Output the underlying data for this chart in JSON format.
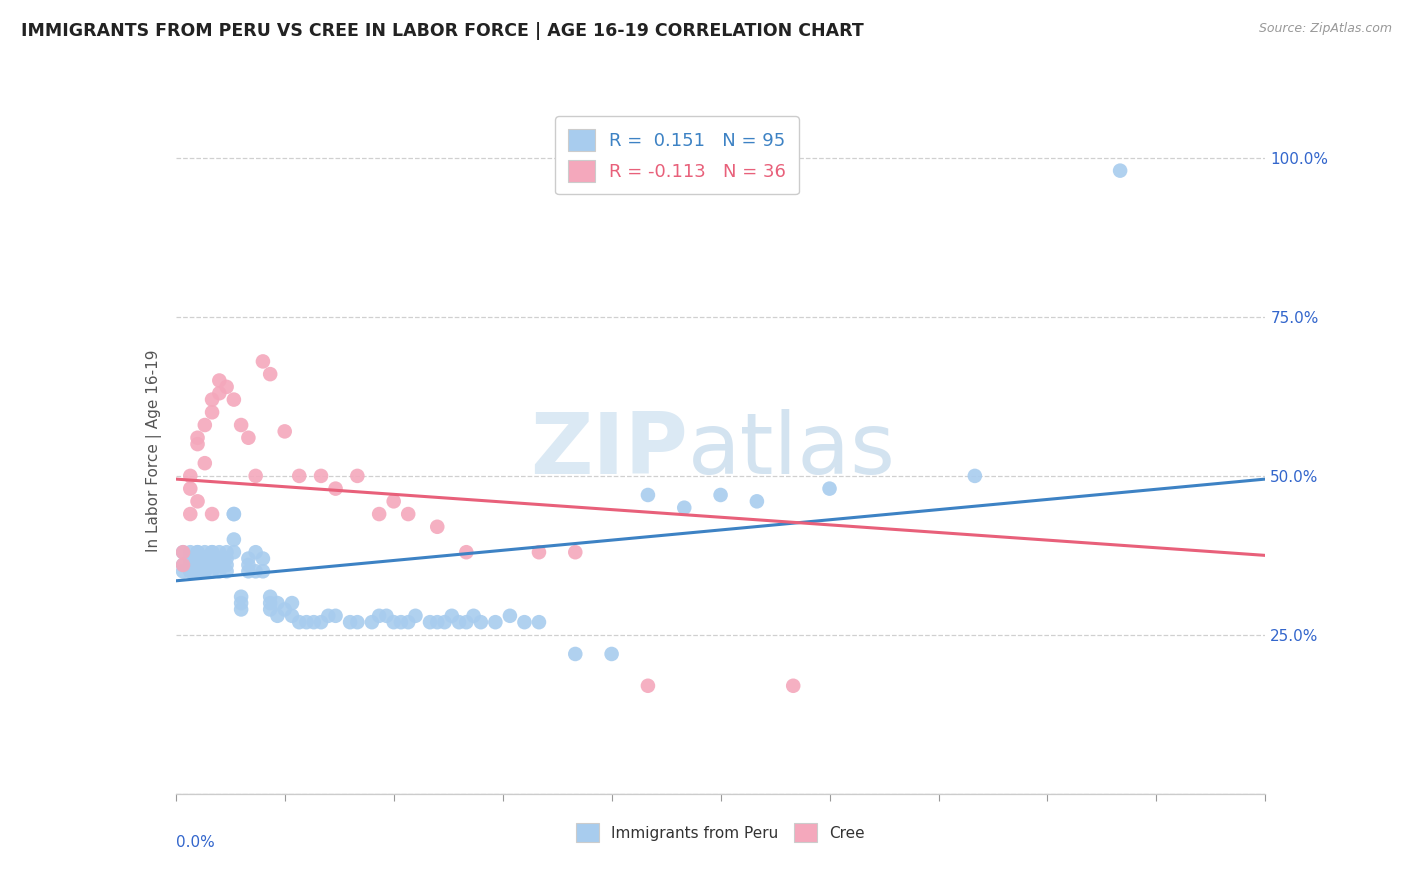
{
  "title": "IMMIGRANTS FROM PERU VS CREE IN LABOR FORCE | AGE 16-19 CORRELATION CHART",
  "source": "Source: ZipAtlas.com",
  "ylabel": "In Labor Force | Age 16-19",
  "ytick_labels": [
    "",
    "25.0%",
    "50.0%",
    "75.0%",
    "100.0%"
  ],
  "ytick_values": [
    0.0,
    0.25,
    0.5,
    0.75,
    1.0
  ],
  "xlim": [
    0.0,
    0.15
  ],
  "ylim": [
    0.0,
    1.08
  ],
  "legend_r1": "R =  0.151",
  "legend_n1": "N = 95",
  "legend_r2": "R = -0.113",
  "legend_n2": "N = 36",
  "color_peru": "#a8ccee",
  "color_cree": "#f4a8bc",
  "trendline_color_peru": "#3d82c4",
  "trendline_color_cree": "#e8607a",
  "watermark_zip": "ZIP",
  "watermark_atlas": "atlas",
  "peru_trendline_x": [
    0.0,
    0.15
  ],
  "peru_trendline_y": [
    0.335,
    0.495
  ],
  "cree_trendline_x": [
    0.0,
    0.15
  ],
  "cree_trendline_y": [
    0.495,
    0.375
  ],
  "peru_x": [
    0.001,
    0.001,
    0.001,
    0.002,
    0.002,
    0.002,
    0.002,
    0.002,
    0.002,
    0.003,
    0.003,
    0.003,
    0.003,
    0.003,
    0.003,
    0.003,
    0.003,
    0.004,
    0.004,
    0.004,
    0.004,
    0.004,
    0.005,
    0.005,
    0.005,
    0.005,
    0.005,
    0.005,
    0.006,
    0.006,
    0.006,
    0.006,
    0.006,
    0.007,
    0.007,
    0.007,
    0.007,
    0.008,
    0.008,
    0.008,
    0.008,
    0.009,
    0.009,
    0.009,
    0.01,
    0.01,
    0.01,
    0.011,
    0.011,
    0.012,
    0.012,
    0.013,
    0.013,
    0.013,
    0.014,
    0.014,
    0.015,
    0.016,
    0.016,
    0.017,
    0.018,
    0.019,
    0.02,
    0.021,
    0.022,
    0.024,
    0.025,
    0.027,
    0.028,
    0.029,
    0.03,
    0.031,
    0.032,
    0.033,
    0.035,
    0.036,
    0.037,
    0.038,
    0.039,
    0.04,
    0.041,
    0.042,
    0.044,
    0.046,
    0.048,
    0.05,
    0.055,
    0.06,
    0.065,
    0.07,
    0.075,
    0.08,
    0.09,
    0.11,
    0.13
  ],
  "peru_y": [
    0.36,
    0.38,
    0.35,
    0.36,
    0.38,
    0.35,
    0.37,
    0.36,
    0.35,
    0.36,
    0.38,
    0.36,
    0.35,
    0.38,
    0.36,
    0.37,
    0.35,
    0.36,
    0.38,
    0.35,
    0.37,
    0.35,
    0.36,
    0.38,
    0.35,
    0.37,
    0.36,
    0.38,
    0.36,
    0.37,
    0.35,
    0.38,
    0.36,
    0.38,
    0.36,
    0.37,
    0.35,
    0.44,
    0.44,
    0.4,
    0.38,
    0.29,
    0.3,
    0.31,
    0.35,
    0.37,
    0.36,
    0.38,
    0.35,
    0.37,
    0.35,
    0.29,
    0.3,
    0.31,
    0.28,
    0.3,
    0.29,
    0.28,
    0.3,
    0.27,
    0.27,
    0.27,
    0.27,
    0.28,
    0.28,
    0.27,
    0.27,
    0.27,
    0.28,
    0.28,
    0.27,
    0.27,
    0.27,
    0.28,
    0.27,
    0.27,
    0.27,
    0.28,
    0.27,
    0.27,
    0.28,
    0.27,
    0.27,
    0.28,
    0.27,
    0.27,
    0.22,
    0.22,
    0.47,
    0.45,
    0.47,
    0.46,
    0.48,
    0.5,
    0.98
  ],
  "cree_x": [
    0.001,
    0.001,
    0.002,
    0.002,
    0.002,
    0.003,
    0.003,
    0.003,
    0.004,
    0.004,
    0.005,
    0.005,
    0.005,
    0.006,
    0.006,
    0.007,
    0.008,
    0.009,
    0.01,
    0.011,
    0.012,
    0.013,
    0.015,
    0.017,
    0.02,
    0.022,
    0.025,
    0.028,
    0.03,
    0.032,
    0.036,
    0.04,
    0.05,
    0.055,
    0.065,
    0.085
  ],
  "cree_y": [
    0.36,
    0.38,
    0.48,
    0.44,
    0.5,
    0.55,
    0.56,
    0.46,
    0.58,
    0.52,
    0.6,
    0.62,
    0.44,
    0.63,
    0.65,
    0.64,
    0.62,
    0.58,
    0.56,
    0.5,
    0.68,
    0.66,
    0.57,
    0.5,
    0.5,
    0.48,
    0.5,
    0.44,
    0.46,
    0.44,
    0.42,
    0.38,
    0.38,
    0.38,
    0.17,
    0.17
  ]
}
